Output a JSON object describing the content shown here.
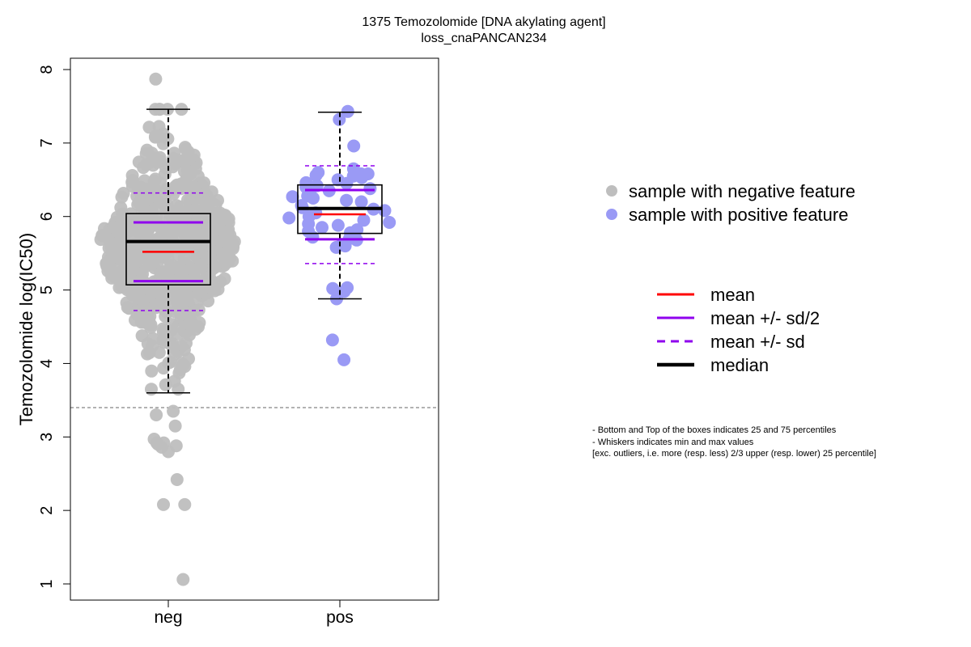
{
  "chart_data": {
    "type": "boxplot-beeswarm",
    "title": "1375 Temozolomide [DNA akylating agent]",
    "subtitle": "loss_cnaPANCAN234",
    "ylabel": "Temozolomide log(IC50)",
    "xlabel": "",
    "ylim": [
      0.8,
      8.2
    ],
    "yticks": [
      1,
      2,
      3,
      4,
      5,
      6,
      7,
      8
    ],
    "categories": [
      "neg",
      "pos"
    ],
    "threshold_line": 3.4,
    "groups": [
      {
        "name": "neg",
        "color": "#bebebe",
        "q1": 5.07,
        "median": 5.66,
        "q3": 6.04,
        "whisker_low": 3.6,
        "whisker_high": 7.46,
        "mean": 5.52,
        "mean_minus_half_sd": 5.12,
        "mean_plus_half_sd": 5.92,
        "mean_minus_sd": 4.72,
        "mean_plus_sd": 6.32,
        "n_points": 700,
        "outliers": [
          7.87,
          3.35,
          3.3,
          3.15,
          2.97,
          2.92,
          2.9,
          2.88,
          2.86,
          2.92,
          2.8,
          2.42,
          2.08,
          2.08,
          1.06
        ]
      },
      {
        "name": "pos",
        "color": "#9a9af5",
        "q1": 5.77,
        "median": 6.11,
        "q3": 6.43,
        "whisker_low": 4.88,
        "whisker_high": 7.42,
        "mean": 6.03,
        "mean_minus_half_sd": 5.69,
        "mean_plus_half_sd": 6.36,
        "mean_minus_sd": 5.36,
        "mean_plus_sd": 6.69,
        "points": [
          7.43,
          7.32,
          6.96,
          6.65,
          6.6,
          6.58,
          6.58,
          6.56,
          6.55,
          6.53,
          6.5,
          6.46,
          6.45,
          6.42,
          6.4,
          6.38,
          6.35,
          6.3,
          6.28,
          6.27,
          6.25,
          6.22,
          6.2,
          6.15,
          6.12,
          6.1,
          6.08,
          6.05,
          6.0,
          5.98,
          5.95,
          5.92,
          5.9,
          5.88,
          5.85,
          5.82,
          5.8,
          5.78,
          5.75,
          5.72,
          5.7,
          5.68,
          5.62,
          5.6,
          5.58,
          5.03,
          5.02,
          4.98,
          4.88,
          4.32,
          4.05
        ]
      }
    ],
    "legend_points": [
      {
        "label": "sample with negative feature",
        "color": "#bebebe"
      },
      {
        "label": "sample with positive feature",
        "color": "#9a9af5"
      }
    ],
    "legend_lines": [
      {
        "label": "mean",
        "color": "#ff0000",
        "style": "solid"
      },
      {
        "label": "mean +/- sd/2",
        "color": "#8f00ee",
        "style": "solid"
      },
      {
        "label": "mean +/- sd",
        "color": "#8f00ee",
        "style": "dashed"
      },
      {
        "label": "median",
        "color": "#000000",
        "style": "solid-thick"
      }
    ],
    "legend_placement": "right"
  },
  "notes": [
    "- Bottom and Top of the boxes indicates 25 and 75 percentiles",
    "- Whiskers indicates min and max values",
    "[exc. outliers, i.e. more (resp. less) 2/3 upper (resp. lower) 25 percentile]"
  ]
}
